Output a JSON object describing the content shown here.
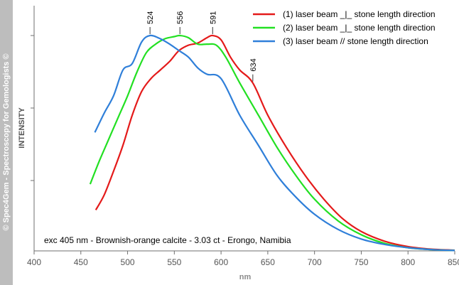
{
  "watermark": "© Spec4Gem - Spectroscopy for Gemologists ©",
  "chart_data": {
    "type": "line",
    "xlabel": "nm",
    "ylabel": "INTENSITY",
    "xlim": [
      400,
      850
    ],
    "ylim": [
      0,
      1
    ],
    "x_ticks": [
      400,
      450,
      500,
      550,
      600,
      650,
      700,
      750,
      800,
      850
    ],
    "y_ticks_labeled": false,
    "grid": false,
    "legend_position": "top-right",
    "annotation": "exc 405 nm - Brownish-orange calcite - 3.03 ct - Erongo, Namibia",
    "peak_labels": [
      {
        "text": "524",
        "x": 524,
        "y": 1.0
      },
      {
        "text": "556",
        "x": 556,
        "y": 1.0
      },
      {
        "text": "591",
        "x": 591,
        "y": 1.0
      },
      {
        "text": "634",
        "x": 634,
        "y": 0.78
      }
    ],
    "series": [
      {
        "name": "(1) laser beam _|_ stone length direction",
        "color": "#e41a1a",
        "x": [
          466,
          475,
          485,
          495,
          505,
          515,
          525,
          535,
          545,
          555,
          565,
          575,
          585,
          591,
          600,
          610,
          620,
          634,
          650,
          670,
          690,
          710,
          730,
          750,
          775,
          800,
          825,
          850
        ],
        "y": [
          0.19,
          0.26,
          0.37,
          0.49,
          0.63,
          0.74,
          0.8,
          0.84,
          0.88,
          0.93,
          0.955,
          0.965,
          0.99,
          1.0,
          0.98,
          0.9,
          0.84,
          0.78,
          0.63,
          0.48,
          0.35,
          0.24,
          0.15,
          0.09,
          0.045,
          0.02,
          0.008,
          0.003
        ]
      },
      {
        "name": "(2) laser beam _|_ stone length direction",
        "color": "#22e022",
        "x": [
          460,
          470,
          480,
          490,
          500,
          510,
          520,
          530,
          540,
          550,
          556,
          565,
          575,
          585,
          595,
          605,
          620,
          640,
          660,
          680,
          700,
          725,
          750,
          775,
          800,
          825,
          850
        ],
        "y": [
          0.31,
          0.42,
          0.52,
          0.62,
          0.72,
          0.83,
          0.92,
          0.96,
          0.985,
          0.995,
          1.0,
          0.99,
          0.96,
          0.96,
          0.955,
          0.9,
          0.78,
          0.63,
          0.48,
          0.35,
          0.24,
          0.14,
          0.075,
          0.035,
          0.015,
          0.006,
          0.002
        ]
      },
      {
        "name": "(3) laser beam // stone length direction",
        "color": "#2f7fd9",
        "x": [
          465,
          475,
          485,
          495,
          505,
          515,
          524,
          535,
          545,
          555,
          565,
          575,
          585,
          600,
          620,
          640,
          660,
          680,
          700,
          725,
          750,
          775,
          800,
          825,
          850
        ],
        "y": [
          0.55,
          0.64,
          0.72,
          0.84,
          0.87,
          0.97,
          1.0,
          0.985,
          0.96,
          0.93,
          0.9,
          0.85,
          0.82,
          0.8,
          0.63,
          0.49,
          0.35,
          0.25,
          0.17,
          0.1,
          0.055,
          0.03,
          0.015,
          0.006,
          0.002
        ]
      }
    ]
  }
}
